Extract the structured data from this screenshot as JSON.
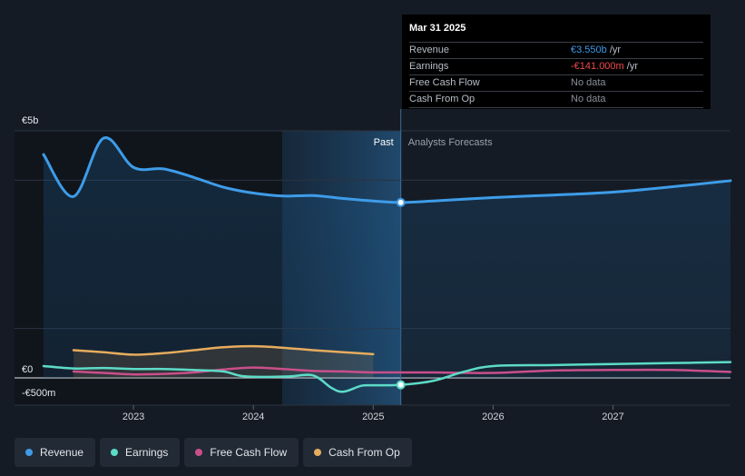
{
  "chart_data": {
    "type": "line",
    "y_axis": {
      "top_label": "€5b",
      "zero_label": "€0",
      "bottom_label": "-€500m",
      "ylim": [
        -500,
        5000
      ]
    },
    "x_axis": {
      "ticks": [
        "2023",
        "2024",
        "2025",
        "2026",
        "2027"
      ],
      "xlim": [
        2022.25,
        2027.98
      ]
    },
    "divider_x": 2025.23,
    "past_label": "Past",
    "forecast_label": "Analysts Forecasts",
    "series": [
      {
        "name": "Revenue",
        "color": "#3e9ce8",
        "points": [
          [
            2022.25,
            4520
          ],
          [
            2022.5,
            3670
          ],
          [
            2022.75,
            4850
          ],
          [
            2023.0,
            4260
          ],
          [
            2023.25,
            4230
          ],
          [
            2023.5,
            4060
          ],
          [
            2023.75,
            3860
          ],
          [
            2024.0,
            3740
          ],
          [
            2024.25,
            3680
          ],
          [
            2024.5,
            3690
          ],
          [
            2024.75,
            3630
          ],
          [
            2025.0,
            3580
          ],
          [
            2025.23,
            3550
          ],
          [
            2025.5,
            3580
          ],
          [
            2026.0,
            3650
          ],
          [
            2026.5,
            3700
          ],
          [
            2027.0,
            3760
          ],
          [
            2027.5,
            3870
          ],
          [
            2027.98,
            3990
          ]
        ]
      },
      {
        "name": "Earnings",
        "color": "#5ddbc8",
        "points": [
          [
            2022.25,
            240
          ],
          [
            2022.5,
            190
          ],
          [
            2022.75,
            200
          ],
          [
            2023.0,
            180
          ],
          [
            2023.25,
            180
          ],
          [
            2023.5,
            160
          ],
          [
            2023.75,
            130
          ],
          [
            2023.9,
            40
          ],
          [
            2024.1,
            20
          ],
          [
            2024.3,
            30
          ],
          [
            2024.5,
            50
          ],
          [
            2024.65,
            -200
          ],
          [
            2024.75,
            -280
          ],
          [
            2024.9,
            -160
          ],
          [
            2025.0,
            -150
          ],
          [
            2025.23,
            -141
          ],
          [
            2025.5,
            -60
          ],
          [
            2025.75,
            120
          ],
          [
            2026.0,
            240
          ],
          [
            2026.5,
            260
          ],
          [
            2027.0,
            280
          ],
          [
            2027.5,
            300
          ],
          [
            2027.98,
            320
          ]
        ]
      },
      {
        "name": "Free Cash Flow",
        "color": "#c94f8a",
        "points": [
          [
            2022.5,
            130
          ],
          [
            2022.75,
            100
          ],
          [
            2023.0,
            70
          ],
          [
            2023.25,
            80
          ],
          [
            2023.5,
            110
          ],
          [
            2023.75,
            170
          ],
          [
            2024.0,
            210
          ],
          [
            2024.25,
            180
          ],
          [
            2024.5,
            140
          ],
          [
            2024.75,
            130
          ],
          [
            2025.0,
            110
          ],
          [
            2025.5,
            110
          ],
          [
            2026.0,
            100
          ],
          [
            2026.5,
            150
          ],
          [
            2027.0,
            160
          ],
          [
            2027.5,
            160
          ],
          [
            2027.98,
            120
          ]
        ]
      },
      {
        "name": "Cash From Op",
        "color": "#e6ac5e",
        "points": [
          [
            2022.5,
            560
          ],
          [
            2022.75,
            520
          ],
          [
            2023.0,
            470
          ],
          [
            2023.25,
            500
          ],
          [
            2023.5,
            560
          ],
          [
            2023.75,
            620
          ],
          [
            2024.0,
            640
          ],
          [
            2024.25,
            610
          ],
          [
            2024.5,
            560
          ],
          [
            2024.75,
            520
          ],
          [
            2025.0,
            480
          ]
        ]
      }
    ]
  },
  "tooltip": {
    "date": "Mar 31 2025",
    "rows": [
      {
        "name": "Revenue",
        "value": "€3.550b",
        "unit": " /yr"
      },
      {
        "name": "Earnings",
        "value": "-€141.000m",
        "unit": " /yr"
      },
      {
        "name": "Free Cash Flow",
        "value": "No data",
        "unit": ""
      },
      {
        "name": "Cash From Op",
        "value": "No data",
        "unit": ""
      }
    ]
  },
  "legend": [
    {
      "label": "Revenue",
      "color": "#3e9ce8"
    },
    {
      "label": "Earnings",
      "color": "#5ddbc8"
    },
    {
      "label": "Free Cash Flow",
      "color": "#c94f8a"
    },
    {
      "label": "Cash From Op",
      "color": "#e6ac5e"
    }
  ]
}
